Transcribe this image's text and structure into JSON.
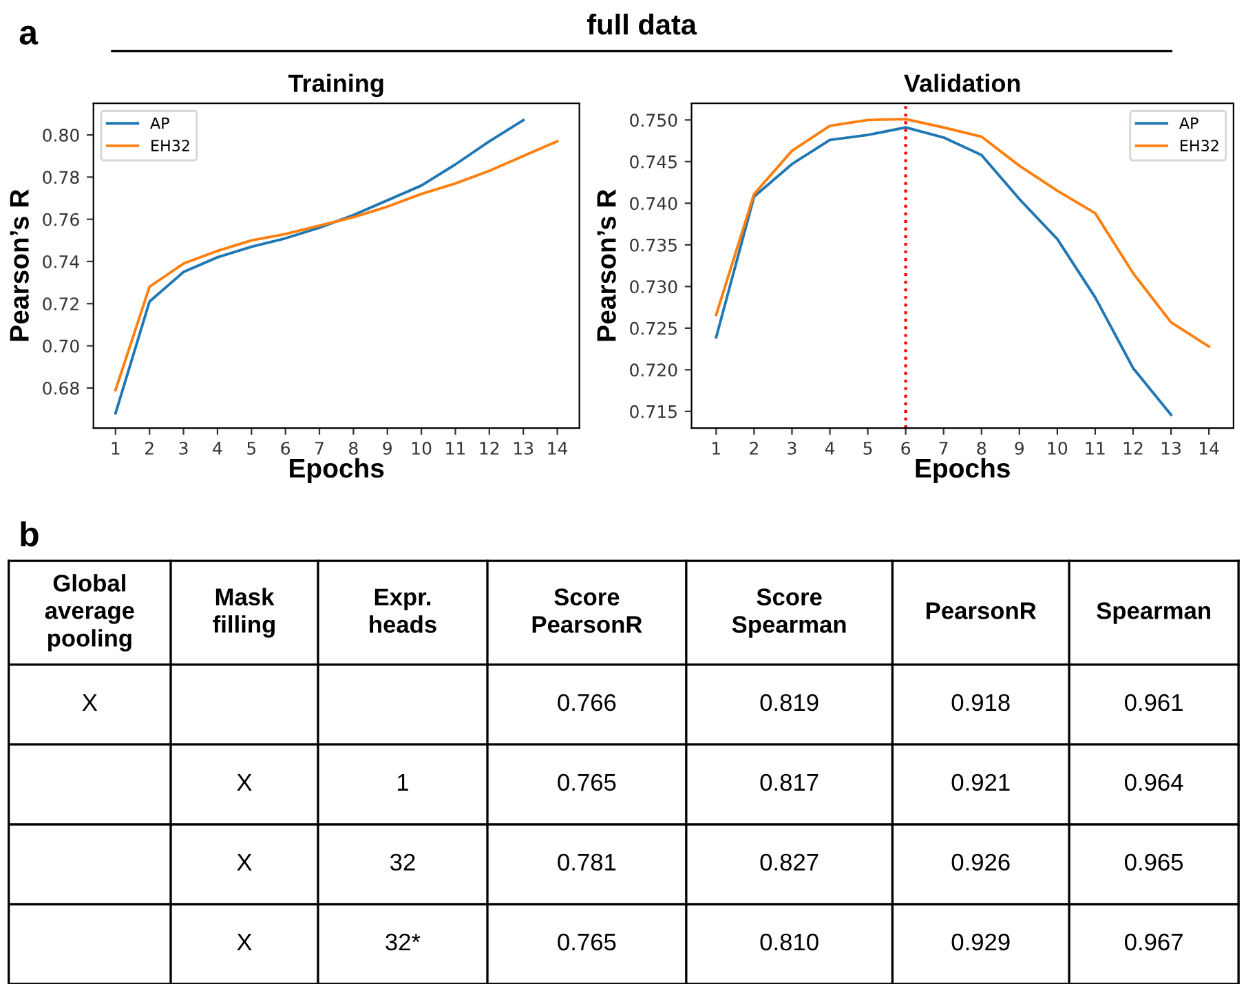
{
  "chart_data": [
    {
      "type": "line",
      "title": "Training",
      "xlabel": "Epochs",
      "ylabel": "Pearson’s R",
      "annotations": [
        "a",
        "full data"
      ],
      "x": [
        1,
        2,
        3,
        4,
        5,
        6,
        7,
        8,
        9,
        10,
        11,
        12,
        13,
        14
      ],
      "series": [
        {
          "name": "AP",
          "color": "#1f77b4",
          "values": [
            0.668,
            0.721,
            0.735,
            0.742,
            0.747,
            0.751,
            0.756,
            0.762,
            0.769,
            0.776,
            0.786,
            0.797,
            0.807,
            null
          ]
        },
        {
          "name": "EH32",
          "color": "#ff7f0e",
          "values": [
            0.679,
            0.728,
            0.739,
            0.745,
            0.75,
            0.753,
            0.757,
            0.761,
            0.766,
            0.772,
            0.777,
            0.783,
            0.79,
            0.797
          ]
        }
      ],
      "xlim": [
        0.35,
        14.65
      ],
      "ylim": [
        0.661,
        0.815
      ],
      "xticks": [
        1,
        2,
        3,
        4,
        5,
        6,
        7,
        8,
        9,
        10,
        11,
        12,
        13,
        14
      ],
      "yticks": [
        {
          "value": 0.68,
          "label": "0.68"
        },
        {
          "value": 0.7,
          "label": "0.70"
        },
        {
          "value": 0.72,
          "label": "0.72"
        },
        {
          "value": 0.74,
          "label": "0.74"
        },
        {
          "value": 0.76,
          "label": "0.76"
        },
        {
          "value": 0.78,
          "label": "0.78"
        },
        {
          "value": 0.8,
          "label": "0.80"
        }
      ],
      "legend": "top left",
      "grid": false
    },
    {
      "type": "line",
      "title": "Validation",
      "xlabel": "Epochs",
      "ylabel": "Pearson’s R",
      "x": [
        1,
        2,
        3,
        4,
        5,
        6,
        7,
        8,
        9,
        10,
        11,
        12,
        13,
        14
      ],
      "series": [
        {
          "name": "AP",
          "color": "#1f77b4",
          "values": [
            0.7239,
            0.7408,
            0.7447,
            0.7476,
            0.7482,
            0.7491,
            0.7479,
            0.7458,
            0.7405,
            0.7357,
            0.7287,
            0.7202,
            0.7146,
            null
          ]
        },
        {
          "name": "EH32",
          "color": "#ff7f0e",
          "values": [
            0.7266,
            0.7411,
            0.7463,
            0.7493,
            0.75,
            0.7501,
            0.7491,
            0.748,
            0.7445,
            0.7415,
            0.7388,
            0.7316,
            0.7257,
            0.7228
          ]
        }
      ],
      "xlim": [
        0.35,
        14.65
      ],
      "ylim": [
        0.713,
        0.752
      ],
      "xticks": [
        1,
        2,
        3,
        4,
        5,
        6,
        7,
        8,
        9,
        10,
        11,
        12,
        13,
        14
      ],
      "yticks": [
        {
          "value": 0.715,
          "label": "0.715"
        },
        {
          "value": 0.72,
          "label": "0.720"
        },
        {
          "value": 0.725,
          "label": "0.725"
        },
        {
          "value": 0.73,
          "label": "0.730"
        },
        {
          "value": 0.735,
          "label": "0.735"
        },
        {
          "value": 0.74,
          "label": "0.740"
        },
        {
          "value": 0.745,
          "label": "0.745"
        },
        {
          "value": 0.75,
          "label": "0.750"
        }
      ],
      "ref_lines": [
        {
          "axis": "x",
          "value": 6,
          "color": "#ff0000",
          "line_style": "dotted"
        }
      ],
      "legend": "top right",
      "grid": false
    },
    {
      "type": "other",
      "annotations": [
        "b"
      ],
      "categories": [
        "Global\naverage\npooling",
        "Mask\nfilling",
        "Expr.\nheads",
        "Score\nPearsonR",
        "Score\nSpearman",
        "PearsonR",
        "Spearman"
      ],
      "cell_labels": [
        [
          "X",
          null,
          null,
          "0.766",
          "0.819",
          "0.918",
          "0.961"
        ],
        [
          null,
          "X",
          "1",
          "0.765",
          "0.817",
          "0.921",
          "0.964"
        ],
        [
          null,
          "X",
          "32",
          "0.781",
          "0.827",
          "0.926",
          "0.965"
        ],
        [
          null,
          "X",
          "32*",
          "0.765",
          "0.810",
          "0.929",
          "0.967"
        ]
      ]
    }
  ]
}
